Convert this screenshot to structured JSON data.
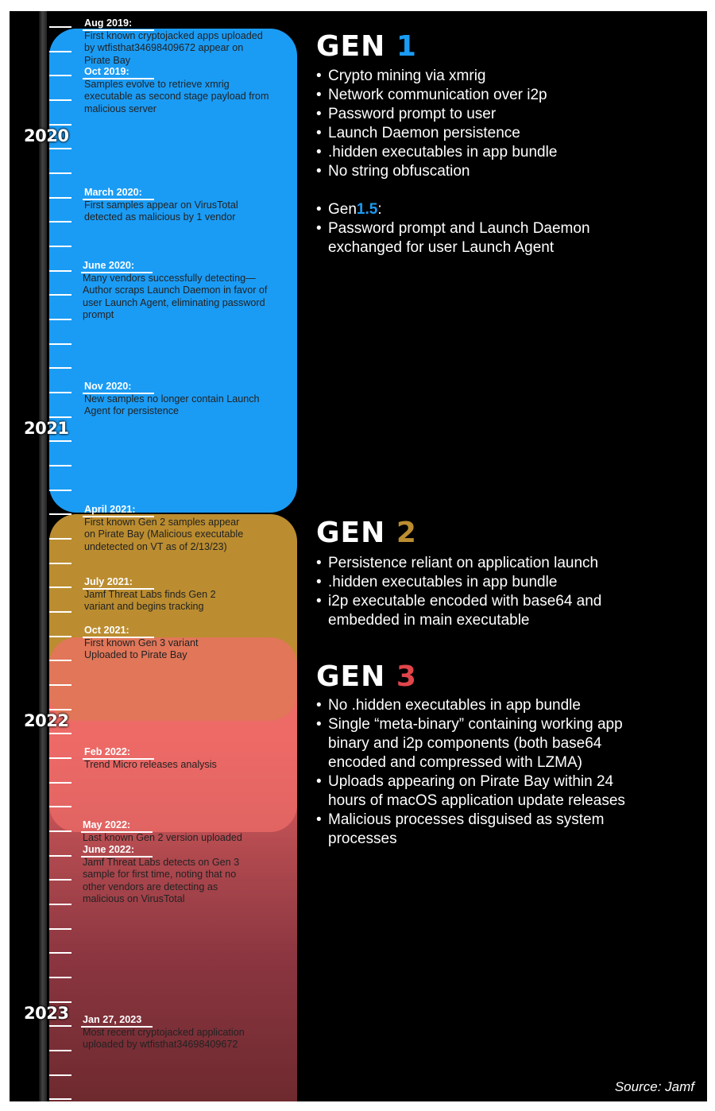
{
  "colors": {
    "gen1": "#1a9cf5",
    "gen2": "#bb8d30",
    "gen3": "#f0645f",
    "gen3_number": "#e0454a",
    "gen1_5": "#1a9cf5",
    "background": "#000000"
  },
  "years": [
    "2020",
    "2021",
    "2022",
    "2023"
  ],
  "events": [
    {
      "date": "Aug 2019:",
      "desc": "First known cryptojacked apps uploaded by wtfisthat34698409672 appear on Pirate Bay"
    },
    {
      "date": "Oct 2019:",
      "desc": "Samples evolve to retrieve xmrig executable as second stage payload from malicious server"
    },
    {
      "date": "March 2020:",
      "desc": "First samples appear on VirusTotal detected as malicious by 1 vendor"
    },
    {
      "date": "June 2020:",
      "desc": "Many vendors successfully detecting—Author scraps Launch Daemon in favor of user Launch Agent, eliminating password prompt"
    },
    {
      "date": "Nov 2020:",
      "desc": "New samples no longer contain Launch Agent for persistence"
    },
    {
      "date": "April 2021:",
      "desc": "First known Gen 2 samples appear on Pirate Bay (Malicious executable undetected on VT as of 2/13/23)"
    },
    {
      "date": "July 2021:",
      "desc": "Jamf Threat Labs finds Gen 2 variant and begins tracking"
    },
    {
      "date": "Oct 2021:",
      "desc": "First known Gen 3 variant Uploaded to Pirate Bay"
    },
    {
      "date": "Feb 2022:",
      "desc": "Trend Micro releases analysis"
    },
    {
      "date": "May 2022:",
      "desc": "Last known Gen 2 version uploaded"
    },
    {
      "date": "June 2022:",
      "desc": "Jamf Threat Labs detects on Gen 3 sample for first time, noting that no other vendors are detecting as malicious on VirusTotal"
    },
    {
      "date": "Jan 27, 2023",
      "desc": "Most recent cryptojacked application uploaded by wtfisthat34698409672"
    }
  ],
  "gen1": {
    "label": "GEN",
    "number": "1",
    "bullets": [
      "Crypto mining via xmrig",
      "Network communication over i2p",
      "Password prompt to user",
      "Launch Daemon persistence",
      ".hidden executables in app bundle",
      "No string obfuscation"
    ],
    "gen15_prefix": "Gen",
    "gen15_number": "1.5",
    "gen15_suffix": ":",
    "gen15_bullet": "Password prompt and Launch Daemon exchanged for user Launch Agent"
  },
  "gen2": {
    "label": "GEN",
    "number": "2",
    "bullets": [
      "Persistence reliant on application launch",
      ".hidden executables in app bundle",
      "i2p executable encoded with base64 and embedded in main executable"
    ]
  },
  "gen3": {
    "label": "GEN",
    "number": "3",
    "bullets": [
      "No .hidden executables in app bundle",
      "Single “meta-binary” containing working app binary and i2p components (both base64 encoded and compressed with LZMA)",
      "Uploads appearing on Pirate Bay within 24 hours of macOS application update releases",
      "Malicious processes disguised as system processes"
    ]
  },
  "source": "Source: Jamf"
}
